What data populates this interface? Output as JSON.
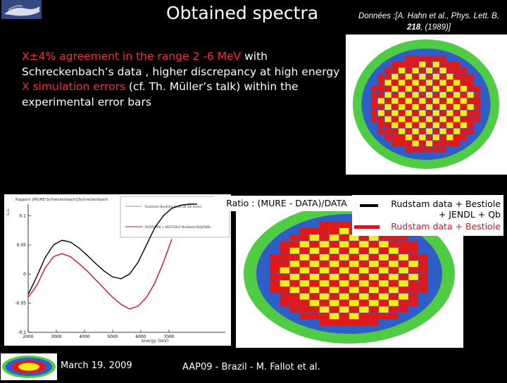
{
  "slide": {
    "title": "Obtained spectra",
    "reference": {
      "prefix": "Données :[",
      "authors": "A. Hahn et al., Phys. Lett. B, ",
      "volume": "218",
      "suffix": ", (1989)]"
    },
    "bullets": [
      {
        "marker": "X",
        "symbol": "±",
        "highlight": "4% agreement in the range 2 -6 MeV",
        "rest": " with Schreckenbach’s data , higher discrepancy at  high energy"
      },
      {
        "marker": "X",
        "highlight": "simulation errors",
        "rest": " (cf. Th. Müller’s talk) within the experimental error bars"
      }
    ],
    "ratio_label": "Ratio : (MURE - DATA)/DATA",
    "legend": [
      {
        "text": "Rudstam data + Bestiole + JENDL + Qb",
        "color": "#000000"
      },
      {
        "text": "Rudstam data + Bestiole",
        "color": "#e0101e"
      }
    ],
    "date": "March 19. 2009",
    "footer": "AAP09 - Brazil - M. Fallot et al."
  },
  "chart_data": {
    "type": "line",
    "title": "Rapport [MURE-Schreckenbach]/Schreckenbach",
    "xlabel": "energy (keV)",
    "ylabel": "s.u.",
    "xlim": [
      2000,
      9000
    ],
    "ylim": [
      -0.1,
      0.12
    ],
    "xticks": [
      2000,
      3000,
      4000,
      5000,
      6000,
      7000
    ],
    "yticks": [
      0.1,
      0.05,
      0,
      -0.05,
      -0.1
    ],
    "legend_entries": [
      "Rudstam Bestiole Jendl all QE exact",
      "RUDSTAM + BESTIOLE  NoQbeta NOJENDL"
    ],
    "series": [
      {
        "name": "Rudstam Bestiole Jendl all QE exact",
        "color": "#000000",
        "x": [
          2000,
          2300,
          2600,
          2900,
          3200,
          3500,
          3800,
          4100,
          4400,
          4700,
          5000,
          5300,
          5600,
          5900,
          6200,
          6500,
          6800,
          7100,
          7400,
          7700,
          8000
        ],
        "y": [
          -0.035,
          -0.005,
          0.028,
          0.05,
          0.058,
          0.055,
          0.045,
          0.032,
          0.018,
          0.005,
          -0.005,
          -0.008,
          0.0,
          0.02,
          0.05,
          0.08,
          0.1,
          0.113,
          0.118,
          0.12,
          0.12
        ]
      },
      {
        "name": "RUDSTAM + BESTIOLE  NoQbeta NOJENDL",
        "color": "#e0101e",
        "x": [
          2000,
          2300,
          2600,
          2900,
          3200,
          3500,
          3800,
          4100,
          4400,
          4700,
          5000,
          5300,
          5600,
          5900,
          6200,
          6500,
          6800,
          7100
        ],
        "y": [
          -0.04,
          -0.02,
          0.01,
          0.03,
          0.035,
          0.03,
          0.018,
          0.005,
          -0.01,
          -0.025,
          -0.04,
          -0.052,
          -0.06,
          -0.055,
          -0.04,
          -0.015,
          0.02,
          0.06
        ]
      }
    ]
  },
  "images": {
    "spectrum_top": "core-map-image",
    "spectrum_mid": "core-map-image",
    "logo": "reactor-logo",
    "corner": "hand-photo"
  },
  "colors": {
    "accent_red": "#ff2a2a",
    "map_blue": "#2f5ec8",
    "map_green": "#4fcc44",
    "map_red": "#e01818",
    "map_yellow": "#f4ec1c"
  }
}
